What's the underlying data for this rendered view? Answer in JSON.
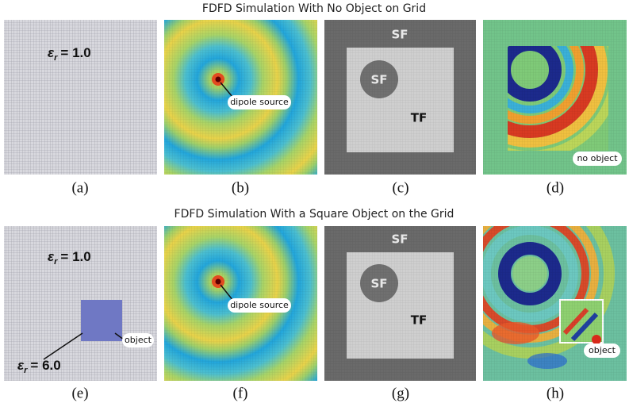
{
  "rows": [
    {
      "title": "FDFD Simulation With No Object on Grid",
      "panels": [
        {
          "caption": "(a)",
          "epsilon": {
            "symbol": "ε",
            "subscript": "r",
            "value": "= 1.0"
          }
        },
        {
          "caption": "(b)",
          "annotation": "dipole source"
        },
        {
          "caption": "(c)",
          "labels": [
            "SF",
            "SF",
            "TF"
          ]
        },
        {
          "caption": "(d)",
          "annotation": "no object"
        }
      ]
    },
    {
      "title": "FDFD Simulation With a Square Object on the Grid",
      "panels": [
        {
          "caption": "(e)",
          "epsilon": {
            "symbol": "ε",
            "subscript": "r",
            "value": "= 1.0"
          },
          "epsilon_object": {
            "symbol": "ε",
            "subscript": "r",
            "value": "= 6.0"
          },
          "annotation": "object"
        },
        {
          "caption": "(f)",
          "annotation": "dipole source"
        },
        {
          "caption": "(g)",
          "labels": [
            "SF",
            "SF",
            "TF"
          ]
        },
        {
          "caption": "(h)",
          "annotation": "object"
        }
      ]
    }
  ]
}
